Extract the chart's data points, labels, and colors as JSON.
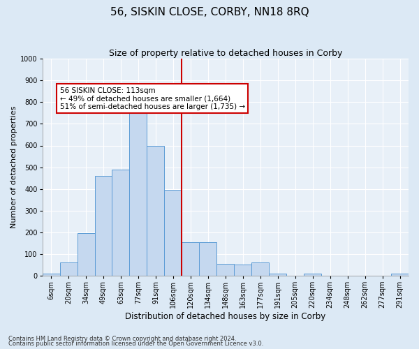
{
  "title": "56, SISKIN CLOSE, CORBY, NN18 8RQ",
  "subtitle": "Size of property relative to detached houses in Corby",
  "xlabel": "Distribution of detached houses by size in Corby",
  "ylabel": "Number of detached properties",
  "footnote1": "Contains HM Land Registry data © Crown copyright and database right 2024.",
  "footnote2": "Contains public sector information licensed under the Open Government Licence v3.0.",
  "categories": [
    "6sqm",
    "20sqm",
    "34sqm",
    "49sqm",
    "63sqm",
    "77sqm",
    "91sqm",
    "106sqm",
    "120sqm",
    "134sqm",
    "148sqm",
    "163sqm",
    "177sqm",
    "191sqm",
    "205sqm",
    "220sqm",
    "234sqm",
    "248sqm",
    "262sqm",
    "277sqm",
    "291sqm"
  ],
  "values": [
    10,
    60,
    195,
    460,
    490,
    760,
    600,
    395,
    155,
    155,
    55,
    50,
    60,
    10,
    0,
    10,
    0,
    0,
    0,
    0,
    10
  ],
  "bar_color": "#c5d8ef",
  "bar_edge_color": "#5b9bd5",
  "vline_color": "#cc0000",
  "vline_x": 7.5,
  "annotation_text": "56 SISKIN CLOSE: 113sqm\n← 49% of detached houses are smaller (1,664)\n51% of semi-detached houses are larger (1,735) →",
  "annotation_box_color": "#ffffff",
  "annotation_box_edge_color": "#cc0000",
  "ylim": [
    0,
    1000
  ],
  "yticks": [
    0,
    100,
    200,
    300,
    400,
    500,
    600,
    700,
    800,
    900,
    1000
  ],
  "background_color": "#dce9f5",
  "plot_bg_color": "#e8f0f8",
  "grid_color": "#ffffff",
  "title_fontsize": 11,
  "subtitle_fontsize": 9,
  "ylabel_fontsize": 8,
  "xlabel_fontsize": 8.5,
  "tick_fontsize": 7,
  "annot_fontsize": 7.5,
  "footnote_fontsize": 6
}
